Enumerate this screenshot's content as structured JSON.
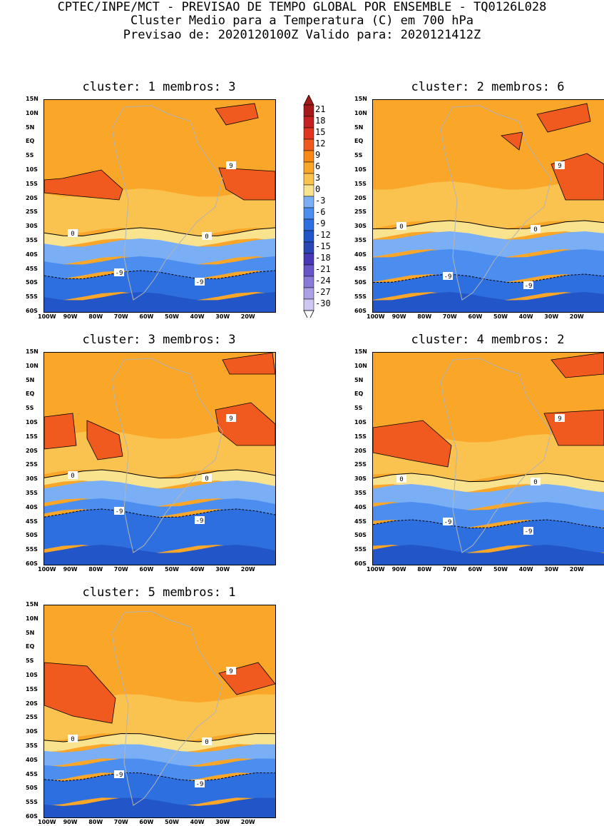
{
  "header": {
    "line1": "CPTEC/INPE/MCT - PREVISAO DE TEMPO GLOBAL POR ENSEMBLE - TQ0126L028",
    "line2": "Cluster Medio para a Temperatura (C) em 700 hPa",
    "line3": "Previsao de: 2020120100Z   Valido para: 2020121412Z"
  },
  "panels": [
    {
      "title": "cluster: 1   membros: 3"
    },
    {
      "title": "cluster: 2   membros: 6"
    },
    {
      "title": "cluster: 3   membros: 3"
    },
    {
      "title": "cluster: 4   membros: 2"
    },
    {
      "title": "cluster: 5   membros: 1"
    }
  ],
  "lat_labels": [
    "15N",
    "10N",
    "5N",
    "EQ",
    "5S",
    "10S",
    "15S",
    "20S",
    "25S",
    "30S",
    "35S",
    "40S",
    "45S",
    "50S",
    "55S",
    "60S"
  ],
  "lon_labels": [
    "100W",
    "90W",
    "80W",
    "70W",
    "60W",
    "50W",
    "40W",
    "30W",
    "20W"
  ],
  "colorbar": {
    "labels": [
      "21",
      "18",
      "15",
      "12",
      "9",
      "6",
      "3",
      "0",
      "-3",
      "-6",
      "-9",
      "-12",
      "-15",
      "-18",
      "-21",
      "-24",
      "-27",
      "-30"
    ],
    "colors": [
      "#a41a1a",
      "#c42222",
      "#e03520",
      "#f05a1e",
      "#fa8a14",
      "#faa628",
      "#fac24e",
      "#fae38e",
      "#7aaef5",
      "#4b8ef0",
      "#2e6fe0",
      "#2256c8",
      "#2c45b4",
      "#4838b6",
      "#6656c8",
      "#8a7ad8",
      "#ad9fe6",
      "#cfc6f2"
    ]
  },
  "contour_labels": {
    "warm": "9",
    "zero": "0",
    "cold": "-9"
  }
}
